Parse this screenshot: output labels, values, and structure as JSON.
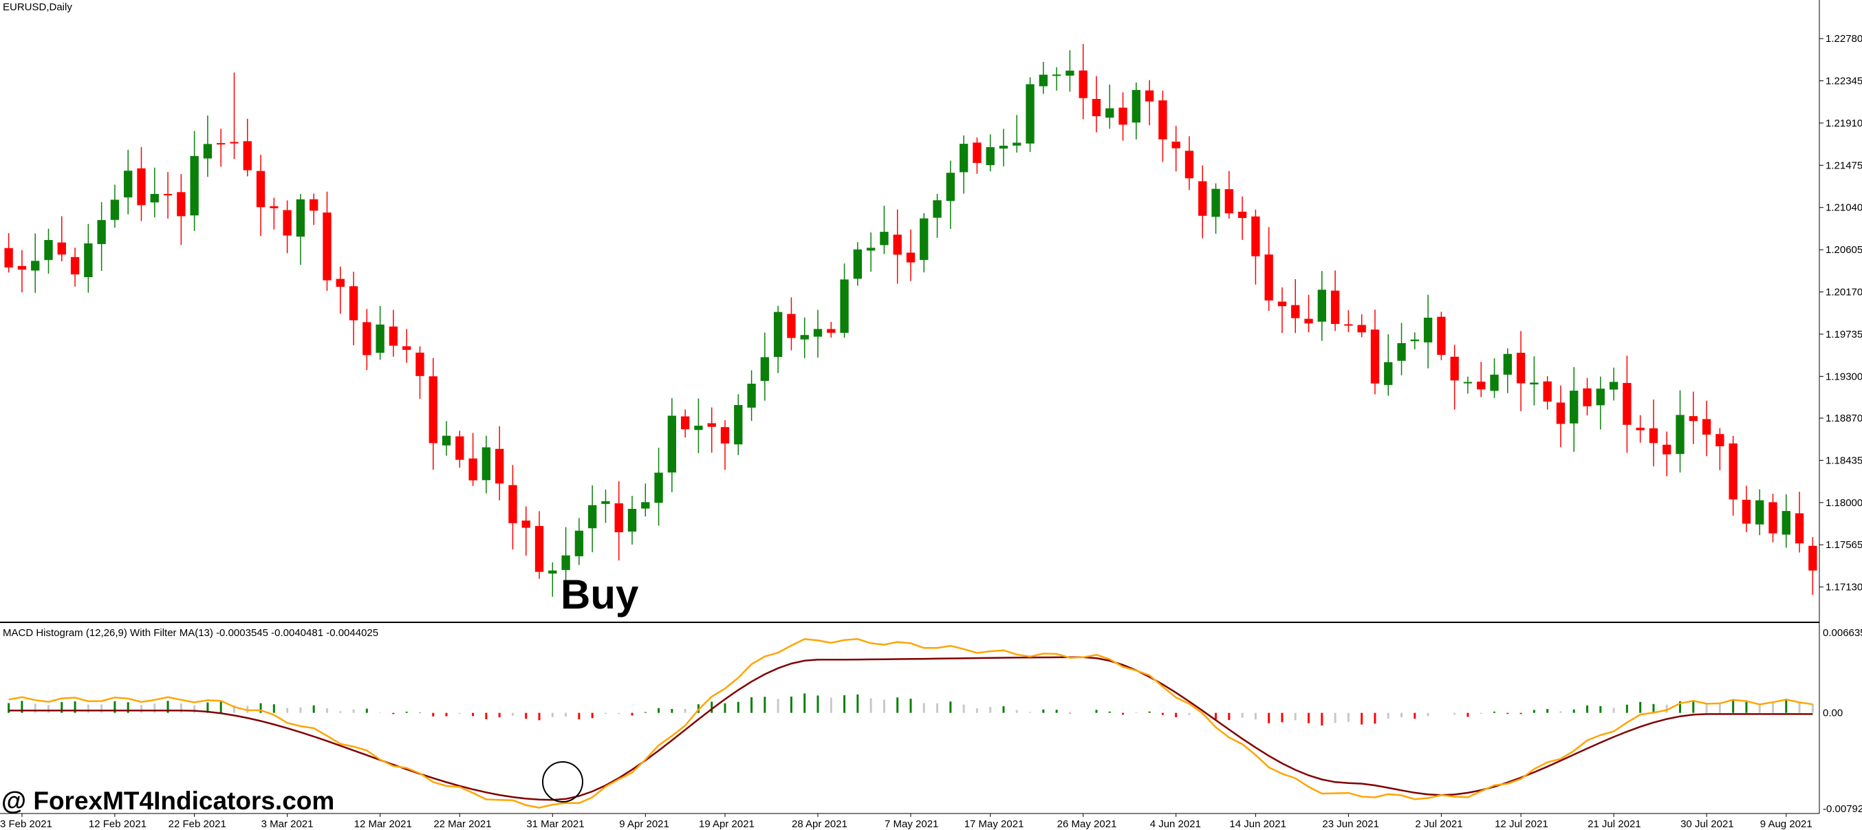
{
  "window": {
    "symbol_title": "EURUSD,Daily"
  },
  "indicator": {
    "title": "MACD Histogram (12,26,9) With Filter MA(13) -0.0003545 -0.0040481 -0.0044025"
  },
  "annotations": {
    "buy_label": "Buy",
    "watermark": "@ ForexMT4Indicators.com"
  },
  "colors": {
    "bull": "#0a800a",
    "bear": "#ff0000",
    "macd_line": "#ffa500",
    "signal_line": "#800000",
    "hist_up": "#0a800a",
    "hist_down": "#ff0000",
    "hist_neutral": "#c8c8c8",
    "grid_frame": "#000000"
  },
  "chart_data": [
    {
      "type": "candlestick",
      "title": "EURUSD,Daily",
      "price_ticks": [
        "1.22780",
        "1.22345",
        "1.21910",
        "1.21475",
        "1.21040",
        "1.20605",
        "1.20170",
        "1.19735",
        "1.19300",
        "1.18870",
        "1.18435",
        "1.18000",
        "1.17565",
        "1.17130"
      ],
      "ylim": [
        1.17,
        1.2305
      ],
      "date_ticks": [
        "3 Feb 2021",
        "12 Feb 2021",
        "22 Feb 2021",
        "3 Mar 2021",
        "12 Mar 2021",
        "22 Mar 2021",
        "31 Mar 2021",
        "9 Apr 2021",
        "19 Apr 2021",
        "28 Apr 2021",
        "7 May 2021",
        "17 May 2021",
        "26 May 2021",
        "4 Jun 2021",
        "14 Jun 2021",
        "23 Jun 2021",
        "2 Jul 2021",
        "12 Jul 2021",
        "21 Jul 2021",
        "30 Jul 2021",
        "9 Aug 2021"
      ],
      "key_points": [
        {
          "date": "3 Feb 2021",
          "close": 1.204
        },
        {
          "date": "25 Feb 2021",
          "high": 1.2243,
          "close": 1.217
        },
        {
          "date": "31 Mar 2021",
          "low": 1.1703,
          "close": 1.173
        },
        {
          "date": "25 May 2021",
          "high": 1.2266,
          "close": 1.2245
        },
        {
          "date": "4 Jun 2021",
          "close": 1.2165
        },
        {
          "date": "17 Jun 2021",
          "close": 1.199
        },
        {
          "date": "30 Jul 2021",
          "high": 1.1905,
          "close": 1.187
        },
        {
          "date": "11 Aug 2021",
          "low": 1.1705,
          "close": 1.173
        },
        {
          "date": "13 Aug 2021",
          "close": 1.1795
        }
      ]
    },
    {
      "type": "line",
      "title": "MACD Histogram (12,26,9) With Filter MA(13) -0.0003545 -0.0040481 -0.0044025",
      "y_ticks": [
        "0.006635",
        "0.00",
        "-0.007924"
      ],
      "ylim": [
        -0.007924,
        0.006635
      ],
      "series_values": [
        {
          "date": "19 Feb 2021",
          "macd": 0.0011,
          "signal": 0.0002
        },
        {
          "date": "31 Mar 2021",
          "macd": -0.0077,
          "signal": -0.0072
        },
        {
          "date": "28 Apr 2021",
          "macd": 0.006,
          "signal": 0.0044
        },
        {
          "date": "26 May 2021",
          "macd": 0.0047,
          "signal": 0.0046
        },
        {
          "date": "23 Jun 2021",
          "macd": -0.0068,
          "signal": -0.0058
        },
        {
          "date": "2 Jul 2021",
          "macd": -0.007,
          "signal": -0.0068
        },
        {
          "date": "30 Jul 2021",
          "macd": 0.0009,
          "signal": -0.0001
        },
        {
          "date": "13 Aug 2021",
          "macd": -0.001,
          "signal": -0.0009
        }
      ]
    }
  ]
}
